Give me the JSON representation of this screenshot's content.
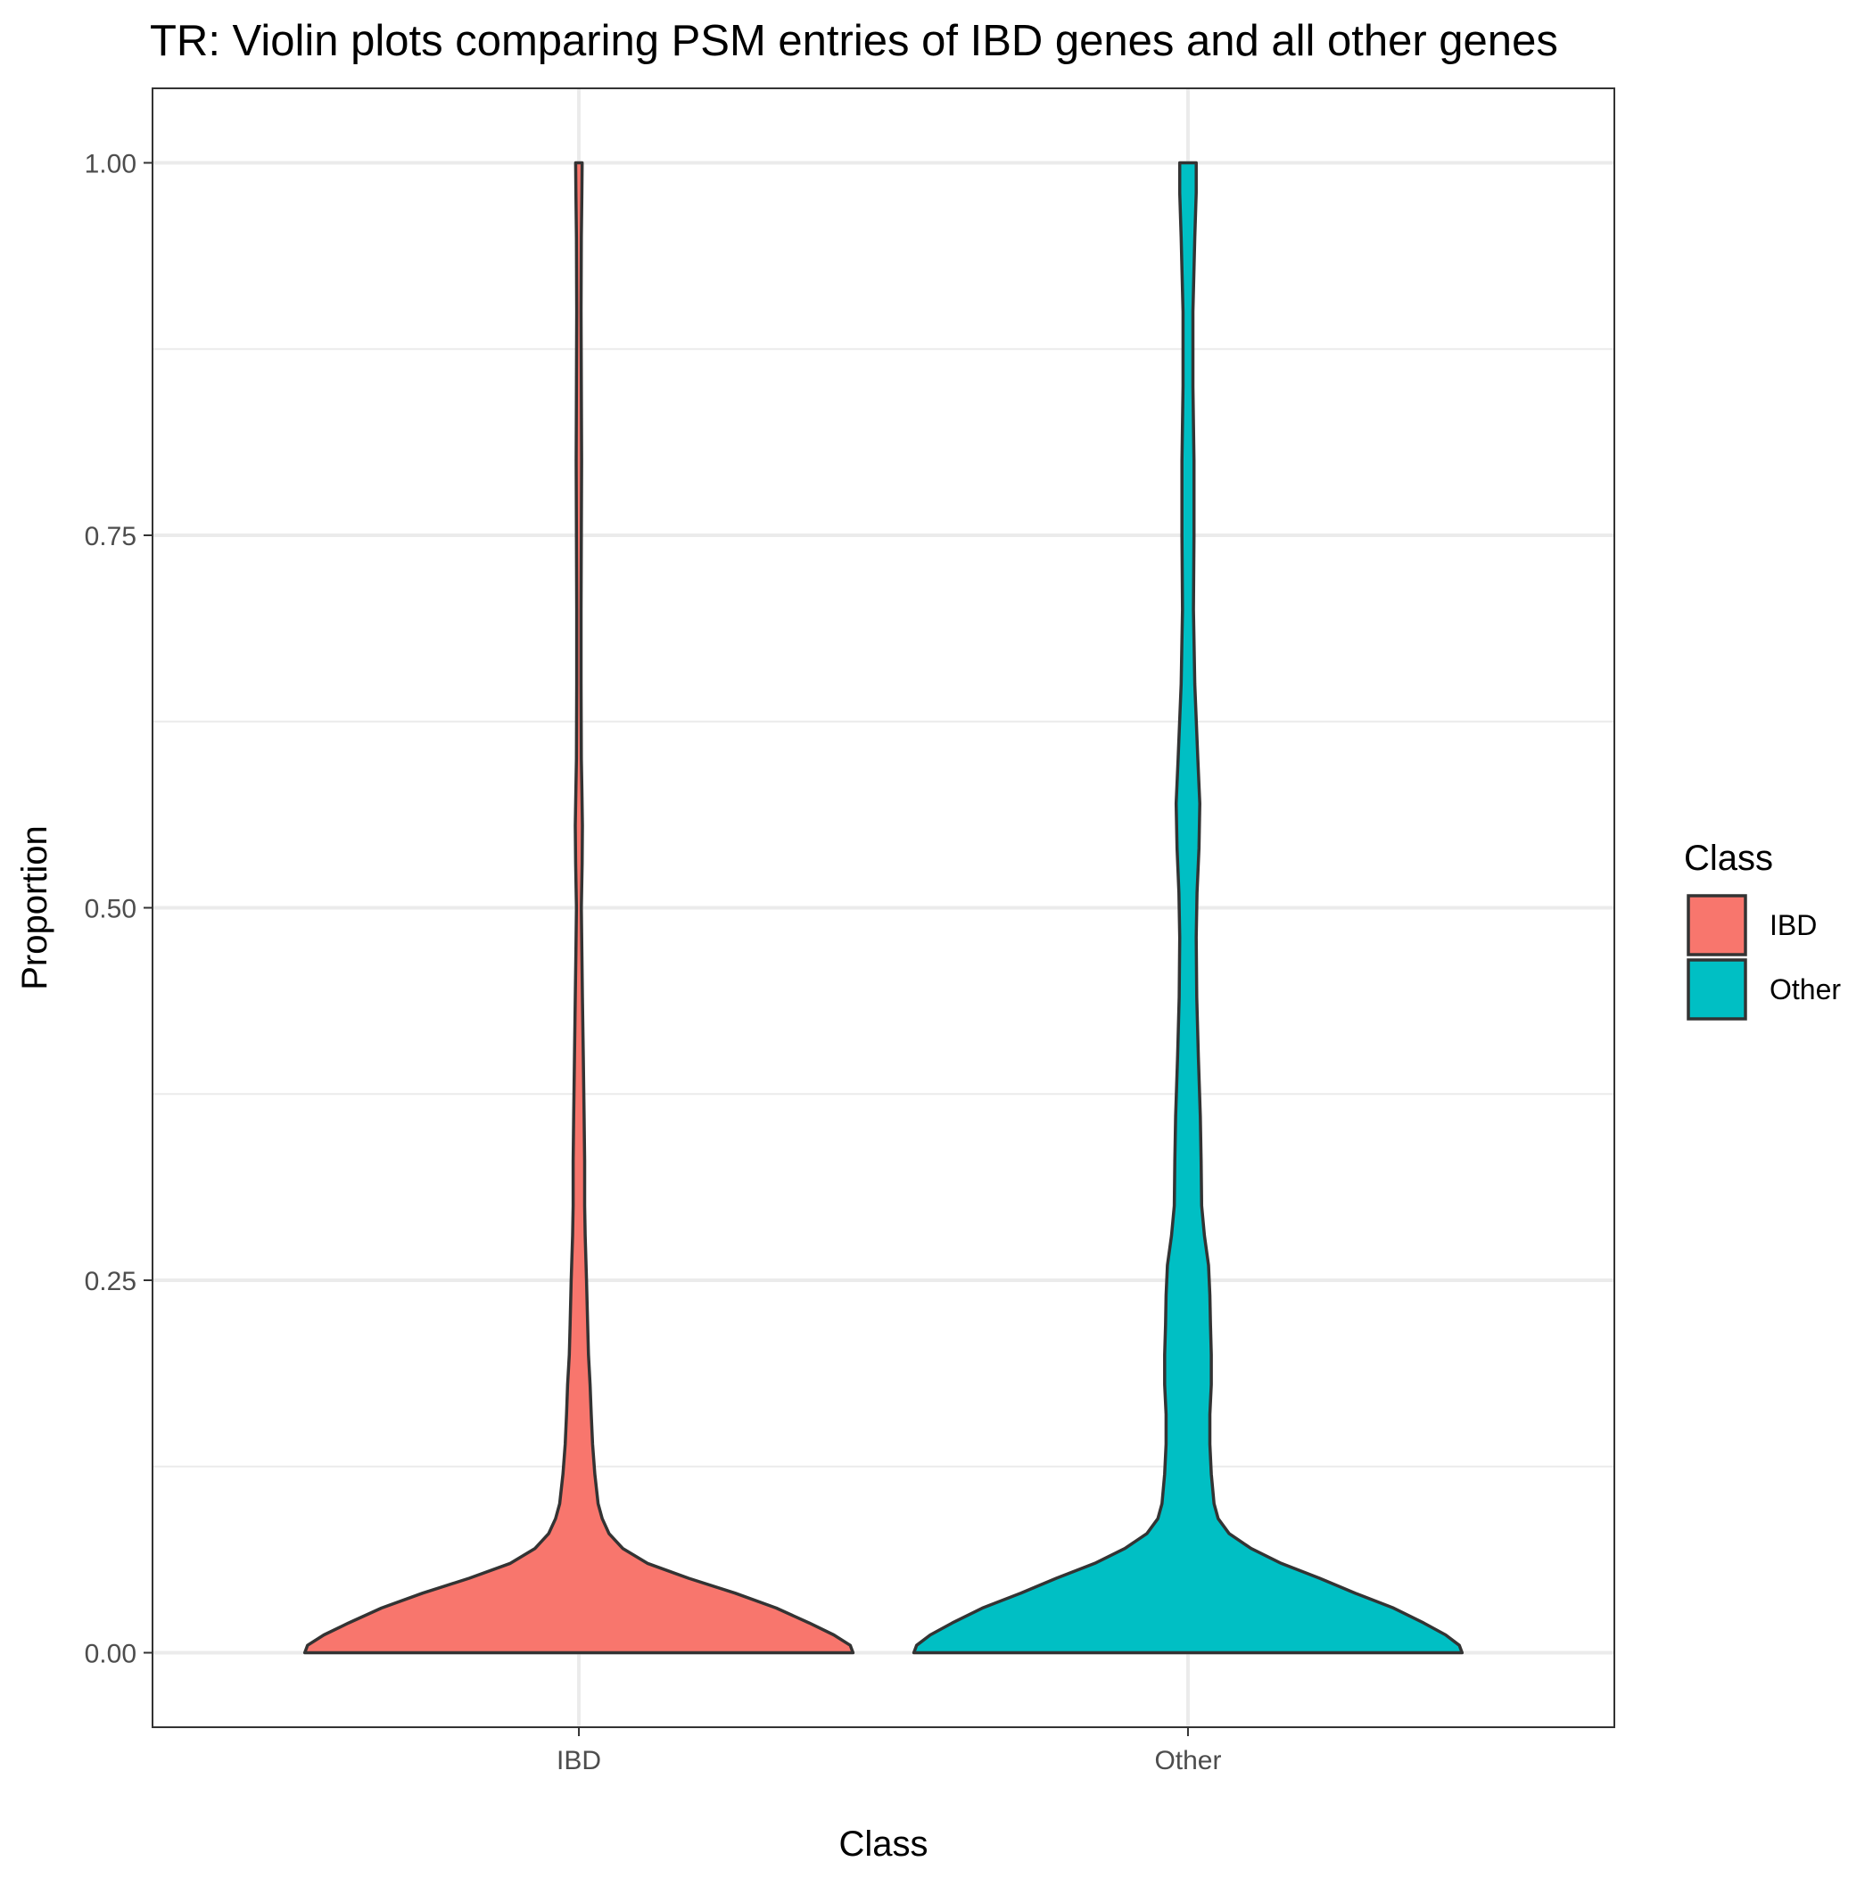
{
  "chart_data": {
    "type": "violin",
    "title": "TR: Violin plots comparing PSM entries of IBD genes and all other genes",
    "xlabel": "Class",
    "ylabel": "Proportion",
    "categories": [
      "IBD",
      "Other"
    ],
    "ylim": [
      -0.05,
      1.05
    ],
    "yticks": [
      0.0,
      0.25,
      0.5,
      0.75,
      1.0
    ],
    "ytick_labels": [
      "0.00",
      "0.25",
      "0.50",
      "0.75",
      "1.00"
    ],
    "grid": true,
    "legend": {
      "title": "Class",
      "position": "right",
      "entries": [
        {
          "label": "IBD",
          "color": "#F8766D"
        },
        {
          "label": "Other",
          "color": "#00BFC4"
        }
      ]
    },
    "series": [
      {
        "category": "IBD",
        "color": "#F8766D",
        "density": [
          [
            0.0,
            1.0
          ],
          [
            0.005,
            0.99
          ],
          [
            0.012,
            0.93
          ],
          [
            0.02,
            0.84
          ],
          [
            0.03,
            0.72
          ],
          [
            0.04,
            0.57
          ],
          [
            0.05,
            0.4
          ],
          [
            0.06,
            0.25
          ],
          [
            0.07,
            0.16
          ],
          [
            0.08,
            0.11
          ],
          [
            0.09,
            0.085
          ],
          [
            0.1,
            0.07
          ],
          [
            0.12,
            0.058
          ],
          [
            0.14,
            0.05
          ],
          [
            0.16,
            0.045
          ],
          [
            0.18,
            0.041
          ],
          [
            0.2,
            0.035
          ],
          [
            0.22,
            0.032
          ],
          [
            0.25,
            0.028
          ],
          [
            0.28,
            0.023
          ],
          [
            0.3,
            0.021
          ],
          [
            0.33,
            0.021
          ],
          [
            0.36,
            0.019
          ],
          [
            0.4,
            0.016
          ],
          [
            0.44,
            0.013
          ],
          [
            0.47,
            0.011
          ],
          [
            0.5,
            0.009
          ],
          [
            0.53,
            0.012
          ],
          [
            0.555,
            0.013
          ],
          [
            0.58,
            0.011
          ],
          [
            0.6,
            0.009
          ],
          [
            0.65,
            0.008
          ],
          [
            0.7,
            0.008
          ],
          [
            0.75,
            0.009
          ],
          [
            0.8,
            0.01
          ],
          [
            0.85,
            0.009
          ],
          [
            0.9,
            0.008
          ],
          [
            0.95,
            0.009
          ],
          [
            0.98,
            0.011
          ],
          [
            1.0,
            0.012
          ]
        ]
      },
      {
        "category": "Other",
        "color": "#00BFC4",
        "density": [
          [
            0.0,
            1.0
          ],
          [
            0.005,
            0.99
          ],
          [
            0.012,
            0.94
          ],
          [
            0.02,
            0.86
          ],
          [
            0.03,
            0.75
          ],
          [
            0.04,
            0.61
          ],
          [
            0.05,
            0.48
          ],
          [
            0.06,
            0.34
          ],
          [
            0.07,
            0.23
          ],
          [
            0.08,
            0.15
          ],
          [
            0.09,
            0.11
          ],
          [
            0.1,
            0.095
          ],
          [
            0.12,
            0.085
          ],
          [
            0.14,
            0.08
          ],
          [
            0.16,
            0.08
          ],
          [
            0.18,
            0.085
          ],
          [
            0.2,
            0.085
          ],
          [
            0.22,
            0.082
          ],
          [
            0.24,
            0.08
          ],
          [
            0.26,
            0.075
          ],
          [
            0.28,
            0.06
          ],
          [
            0.3,
            0.05
          ],
          [
            0.33,
            0.048
          ],
          [
            0.36,
            0.045
          ],
          [
            0.4,
            0.038
          ],
          [
            0.44,
            0.032
          ],
          [
            0.48,
            0.03
          ],
          [
            0.51,
            0.033
          ],
          [
            0.54,
            0.04
          ],
          [
            0.57,
            0.043
          ],
          [
            0.6,
            0.036
          ],
          [
            0.65,
            0.025
          ],
          [
            0.7,
            0.02
          ],
          [
            0.75,
            0.022
          ],
          [
            0.8,
            0.022
          ],
          [
            0.85,
            0.018
          ],
          [
            0.9,
            0.018
          ],
          [
            0.95,
            0.025
          ],
          [
            0.98,
            0.03
          ],
          [
            1.0,
            0.03
          ]
        ]
      }
    ]
  }
}
